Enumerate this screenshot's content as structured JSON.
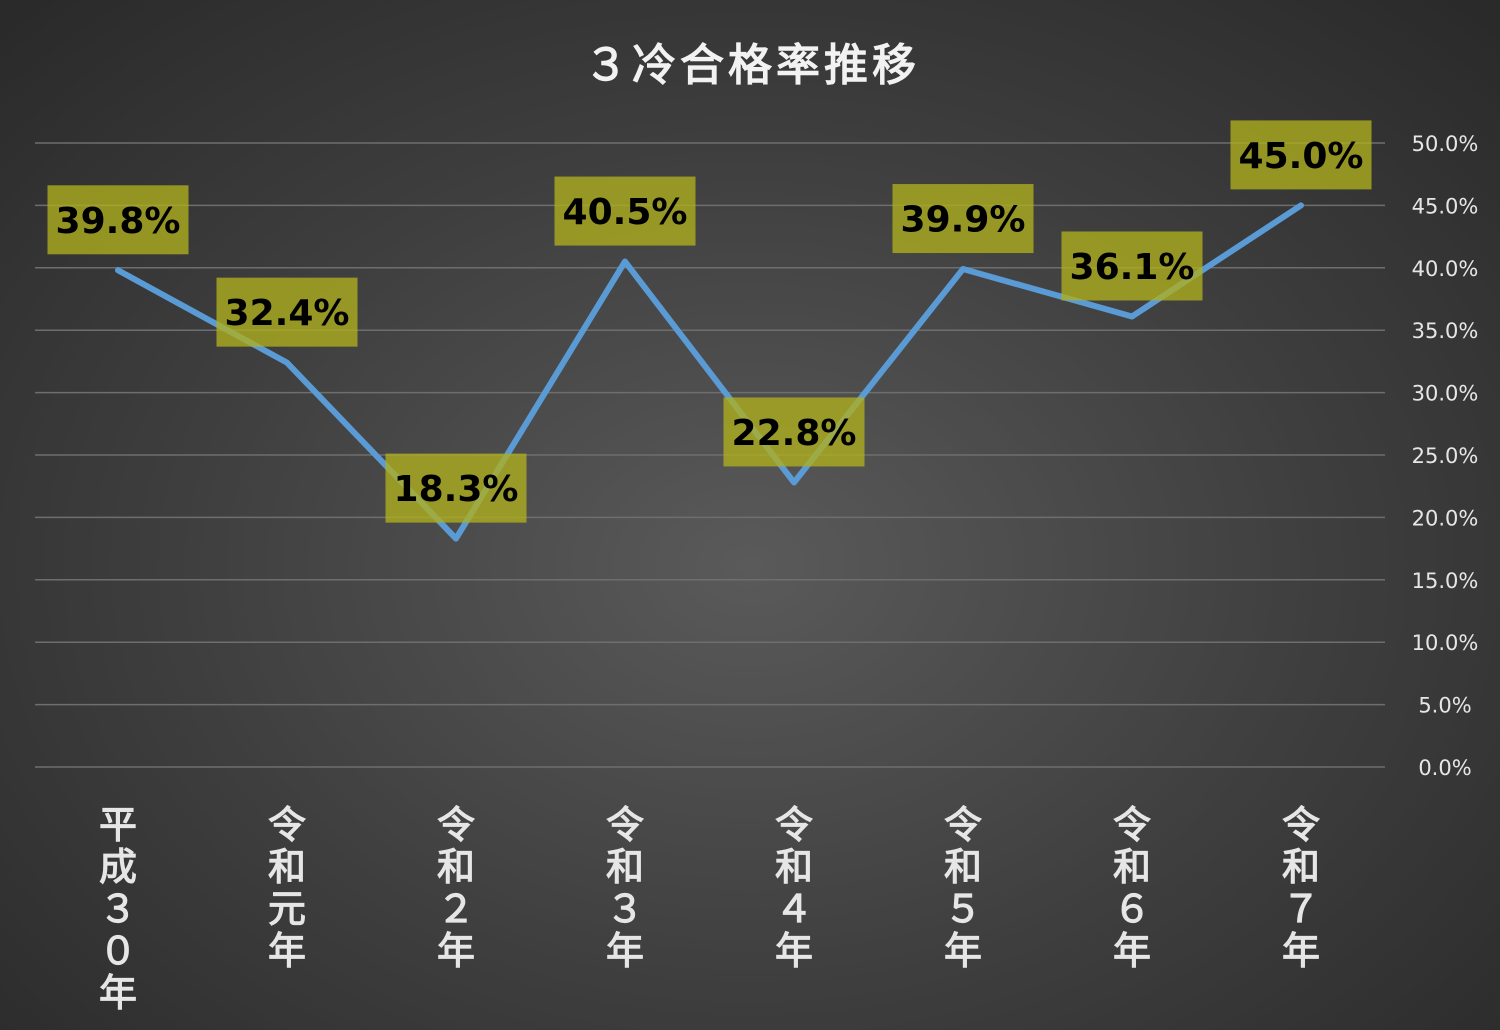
{
  "chart_data": {
    "type": "line",
    "title": "３冷合格率推移",
    "categories": [
      "平成３０年",
      "令和元年",
      "令和２年",
      "令和３年",
      "令和４年",
      "令和５年",
      "令和６年",
      "令和７年"
    ],
    "series": [
      {
        "values": [
          39.8,
          32.4,
          18.3,
          40.5,
          22.8,
          39.9,
          36.1,
          45.0
        ],
        "data_labels": [
          "39.8%",
          "32.4%",
          "18.3%",
          "40.5%",
          "22.8%",
          "39.9%",
          "36.1%",
          "45.0%"
        ],
        "color": "#5b9bd5"
      }
    ],
    "ylim": [
      0,
      50
    ],
    "yticks": [
      "0.0%",
      "5.0%",
      "10.0%",
      "15.0%",
      "20.0%",
      "25.0%",
      "30.0%",
      "35.0%",
      "40.0%",
      "45.0%",
      "50.0%"
    ],
    "y_axis_position": "right",
    "grid": true,
    "xlabel": "",
    "ylabel": "",
    "label_box_color": "#afaf1e"
  }
}
